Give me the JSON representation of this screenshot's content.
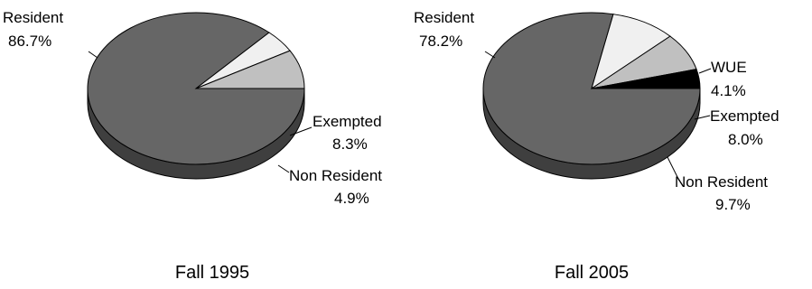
{
  "chart_data": [
    {
      "type": "pie",
      "title": "Fall 1995",
      "slices": [
        {
          "label": "Resident",
          "value_label": "86.7%",
          "value": 86.7,
          "color": "#666666"
        },
        {
          "label": "Non Resident",
          "value_label": "4.9%",
          "value": 4.9,
          "color": "#f0f0f0"
        },
        {
          "label": "Exempted",
          "value_label": "8.3%",
          "value": 8.3,
          "color": "#c0c0c0"
        }
      ]
    },
    {
      "type": "pie",
      "title": "Fall 2005",
      "slices": [
        {
          "label": "Resident",
          "value_label": "78.2%",
          "value": 78.2,
          "color": "#666666"
        },
        {
          "label": "Non Resident",
          "value_label": "9.7%",
          "value": 9.7,
          "color": "#f0f0f0"
        },
        {
          "label": "Exempted",
          "value_label": "8.0%",
          "value": 8.0,
          "color": "#c0c0c0"
        },
        {
          "label": "WUE",
          "value_label": "4.1%",
          "value": 4.1,
          "color": "#000000"
        }
      ]
    }
  ]
}
